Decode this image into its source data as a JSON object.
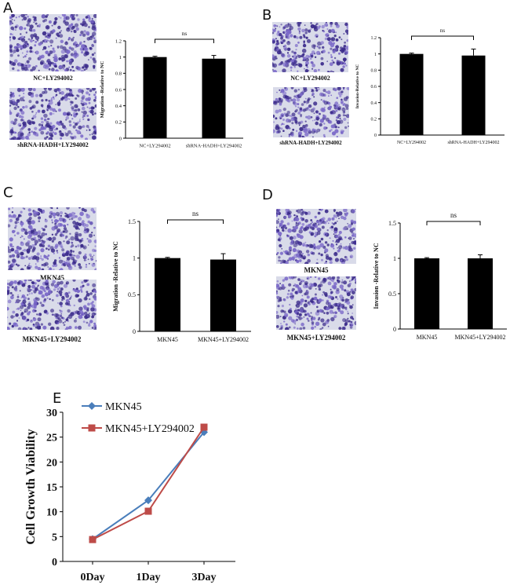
{
  "panels": {
    "A": {
      "letter": "A",
      "image_captions": [
        "NC+LY294002",
        "shRNA-HADH+LY294002"
      ]
    },
    "B": {
      "letter": "B",
      "image_captions": [
        "NC+LY294002",
        "shRNA-HADH+LY294002"
      ]
    },
    "C": {
      "letter": "C",
      "image_captions": [
        "MKN45",
        "MKN45+LY294002"
      ]
    },
    "D": {
      "letter": "D",
      "image_captions": [
        "MKN45",
        "MKN45+LY294002"
      ]
    },
    "E": {
      "letter": "E"
    }
  },
  "colors": {
    "bar": "#000000",
    "stain_dark": "#3a2a8a",
    "stain_light": "#7a68c8",
    "series_mkn45": "#4a7ebb",
    "series_ly": "#be4b48"
  },
  "chart_data": [
    {
      "id": "A",
      "type": "bar",
      "categories": [
        "NC+LY294002",
        "shRNA-HADH+LY294002"
      ],
      "values": [
        1.0,
        0.98
      ],
      "errors": [
        0.01,
        0.04
      ],
      "ylabel": "Migration -Relative to NC",
      "ylim": [
        0,
        1.2
      ],
      "yticks": [
        "0",
        "0.2",
        "0.4",
        "0.6",
        "0.8",
        "1",
        "1.2"
      ],
      "annotation": "ns"
    },
    {
      "id": "B",
      "type": "bar",
      "categories": [
        "NC+LY294002",
        "shRNA-HADH+LY294002"
      ],
      "values": [
        1.0,
        0.98
      ],
      "errors": [
        0.01,
        0.08
      ],
      "ylabel": "Invasion-Relative to NC",
      "ylim": [
        0,
        1.2
      ],
      "yticks": [
        "0",
        "0.2",
        "0.4",
        "0.6",
        "0.8",
        "1",
        "1.2"
      ],
      "annotation": "ns"
    },
    {
      "id": "C",
      "type": "bar",
      "categories": [
        "MKN45",
        "MKN45+LY294002"
      ],
      "values": [
        1.0,
        0.98
      ],
      "errors": [
        0.01,
        0.08
      ],
      "ylabel": "Migration -Relative to NC",
      "ylim": [
        0,
        1.5
      ],
      "yticks": [
        "0",
        "0.5",
        "1",
        "1.5"
      ],
      "annotation": "ns"
    },
    {
      "id": "D",
      "type": "bar",
      "categories": [
        "MKN45",
        "MKN45+LY294002"
      ],
      "values": [
        1.0,
        1.0
      ],
      "errors": [
        0.01,
        0.05
      ],
      "ylabel": "Invasion -Relative to NC",
      "ylim": [
        0,
        1.5
      ],
      "yticks": [
        "0",
        "0.5",
        "1",
        "1.5"
      ],
      "annotation": "ns"
    },
    {
      "id": "E",
      "type": "line",
      "categories": [
        "0Day",
        "1Day",
        "3Day"
      ],
      "series": [
        {
          "name": "MKN45",
          "values": [
            4.5,
            12.3,
            26.0
          ],
          "errors": [
            0.3,
            0.4,
            0.6
          ]
        },
        {
          "name": "MKN45+LY294002",
          "values": [
            4.4,
            10.1,
            27.0
          ],
          "errors": [
            0.3,
            0.4,
            0.7
          ]
        }
      ],
      "ylabel": "Cell Growth Viability",
      "ylim": [
        0,
        30
      ],
      "yticks": [
        "0",
        "5",
        "10",
        "15",
        "20",
        "25",
        "30"
      ]
    }
  ]
}
